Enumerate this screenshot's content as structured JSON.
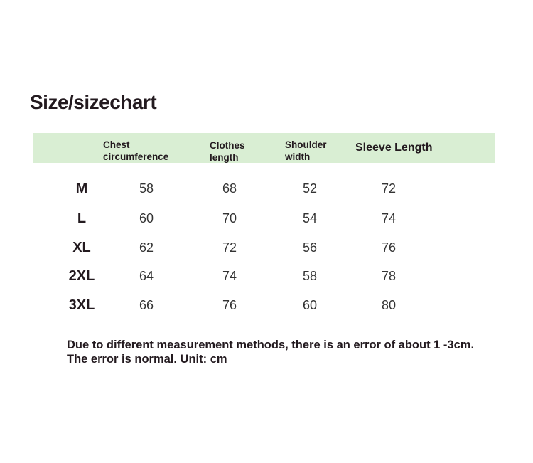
{
  "title": "Size/sizechart",
  "headers": [
    "Chest\ncircumference",
    "Clothes\nlength",
    "Shoulder\nwidth",
    "Sleeve Length"
  ],
  "rows": [
    {
      "size": "M",
      "values": [
        "58",
        "68",
        "52",
        "72"
      ]
    },
    {
      "size": "L",
      "values": [
        "60",
        "70",
        "54",
        "74"
      ]
    },
    {
      "size": "XL",
      "values": [
        "62",
        "72",
        "56",
        "76"
      ]
    },
    {
      "size": "2XL",
      "values": [
        "64",
        "74",
        "58",
        "78"
      ]
    },
    {
      "size": "3XL",
      "values": [
        "66",
        "76",
        "60",
        "80"
      ]
    }
  ],
  "note": "Due to different measurement methods, there is an error of about 1 -3cm. The error is normal. Unit: cm",
  "colors": {
    "header_band": "#d9eed3",
    "text": "#231a1f"
  }
}
